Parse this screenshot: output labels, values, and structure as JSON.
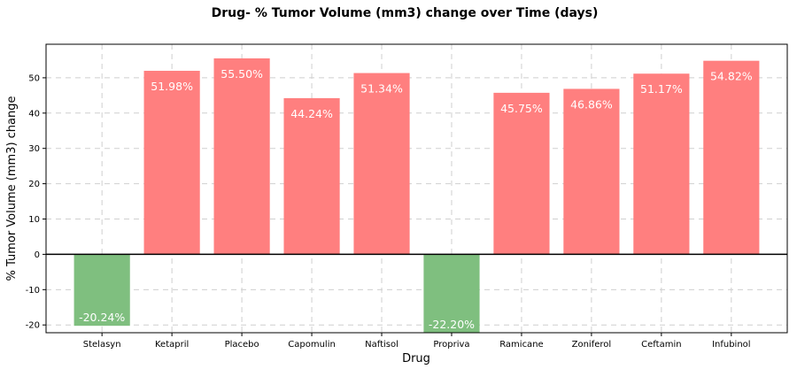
{
  "chart_data": {
    "type": "bar",
    "title": "Drug- % Tumor Volume (mm3) change over Time (days)",
    "xlabel": "Drug",
    "ylabel": "% Tumor Volume (mm3) change",
    "categories": [
      "Stelasyn",
      "Ketapril",
      "Placebo",
      "Capomulin",
      "Naftisol",
      "Propriva",
      "Ramicane",
      "Zoniferol",
      "Ceftamin",
      "Infubinol"
    ],
    "values": [
      -20.24,
      51.98,
      55.5,
      44.24,
      51.34,
      -22.2,
      45.75,
      46.86,
      51.17,
      54.82
    ],
    "data_labels": [
      "-20.24%",
      "51.98%",
      "55.50%",
      "44.24%",
      "51.34%",
      "-22.20%",
      "45.75%",
      "46.86%",
      "51.17%",
      "54.82%"
    ],
    "yticks": [
      -20,
      -10,
      0,
      10,
      20,
      30,
      40,
      50
    ],
    "ylim": [
      -22.2,
      59.5
    ],
    "grid": true,
    "colors": {
      "positive": "#ff7f7f",
      "negative": "#7fbf7f",
      "zero_line": "#000000"
    }
  }
}
